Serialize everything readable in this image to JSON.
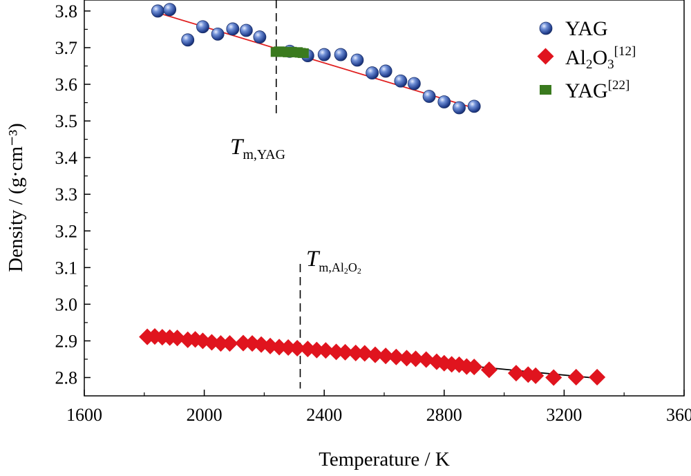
{
  "chart_data": {
    "type": "scatter",
    "xlabel": "Temperature / K",
    "ylabel": "Density / (g·cm⁻³)",
    "xlim": [
      1600,
      3600
    ],
    "ylim": [
      2.75,
      3.83
    ],
    "x_ticks": [
      1600,
      2000,
      2400,
      2800,
      3200,
      3600
    ],
    "x_tick_labels": [
      "1600",
      "2000",
      "2400",
      "2800",
      "3200",
      "3600"
    ],
    "y_ticks": [
      2.8,
      2.9,
      3.0,
      3.1,
      3.2,
      3.3,
      3.4,
      3.5,
      3.6,
      3.7,
      3.8
    ],
    "y_tick_labels": [
      "2.8",
      "2.9",
      "3.0",
      "3.1",
      "3.2",
      "3.3",
      "3.4",
      "3.5",
      "3.6",
      "3.7",
      "3.8"
    ],
    "grid": false,
    "legend_position": "top-right",
    "series": [
      {
        "name": "YAG",
        "marker": "sphere",
        "color": "#2b4fa8",
        "x": [
          1845,
          1885,
          1945,
          1995,
          2045,
          2095,
          2140,
          2185,
          2285,
          2345,
          2400,
          2455,
          2510,
          2560,
          2605,
          2655,
          2700,
          2750,
          2800,
          2850,
          2900
        ],
        "y": [
          3.8,
          3.804,
          3.721,
          3.757,
          3.737,
          3.751,
          3.747,
          3.729,
          3.69,
          3.678,
          3.681,
          3.681,
          3.666,
          3.631,
          3.636,
          3.609,
          3.602,
          3.567,
          3.552,
          3.536,
          3.54
        ],
        "fit": {
          "color": "#e02020",
          "x": [
            1845,
            2880
          ],
          "y": [
            3.795,
            3.54
          ]
        }
      },
      {
        "name": "Al2O3",
        "legend_base": "Al",
        "legend_sub1": "2",
        "legend_mid": "O",
        "legend_sub2": "3",
        "legend_sup": "[12]",
        "marker": "diamond",
        "color": "#e0141e",
        "x": [
          1810,
          1835,
          1860,
          1885,
          1910,
          1945,
          1970,
          1995,
          2025,
          2055,
          2085,
          2130,
          2160,
          2190,
          2220,
          2250,
          2280,
          2310,
          2345,
          2375,
          2405,
          2440,
          2470,
          2505,
          2535,
          2570,
          2605,
          2640,
          2675,
          2705,
          2740,
          2775,
          2800,
          2825,
          2850,
          2875,
          2900,
          2950,
          3040,
          3080,
          3105,
          3165,
          3240,
          3310
        ],
        "y": [
          2.911,
          2.912,
          2.91,
          2.909,
          2.908,
          2.903,
          2.904,
          2.9,
          2.896,
          2.893,
          2.893,
          2.894,
          2.893,
          2.89,
          2.886,
          2.883,
          2.882,
          2.88,
          2.878,
          2.875,
          2.874,
          2.87,
          2.869,
          2.867,
          2.866,
          2.862,
          2.859,
          2.856,
          2.853,
          2.851,
          2.849,
          2.843,
          2.839,
          2.836,
          2.835,
          2.83,
          2.829,
          2.821,
          2.812,
          2.808,
          2.805,
          2.8,
          2.801,
          2.801
        ],
        "fit": {
          "color": "#000000",
          "x": [
            1815,
            3310
          ],
          "y": [
            2.916,
            2.798
          ]
        }
      },
      {
        "name": "YAG",
        "legend_sup": "[22]",
        "marker": "square",
        "color": "#3a7a1e",
        "x": [
          2240,
          2250,
          2260,
          2270,
          2280,
          2290,
          2300,
          2310,
          2320,
          2330
        ],
        "y": [
          3.688,
          3.69,
          3.688,
          3.689,
          3.687,
          3.689,
          3.687,
          3.688,
          3.686,
          3.685
        ]
      }
    ],
    "annotations": [
      {
        "kind": "vline",
        "x": 2240,
        "y_from": 3.51,
        "y_to": 3.83
      },
      {
        "kind": "vline",
        "x": 2320,
        "y_from": 2.77,
        "y_to": 3.11
      },
      {
        "kind": "label",
        "base": "T",
        "sub": "m,YAG"
      },
      {
        "kind": "label",
        "base": "T",
        "sub": "m,Al",
        "sub2": "2",
        "sub_tail": "O",
        "sub3": "2"
      }
    ]
  }
}
